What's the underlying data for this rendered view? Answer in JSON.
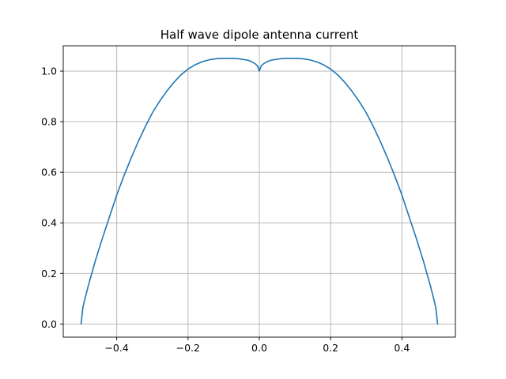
{
  "chart_data": {
    "type": "line",
    "title": "Half wave dipole antenna current",
    "xlabel": "",
    "ylabel": "",
    "xlim": [
      -0.55,
      0.55
    ],
    "ylim": [
      -0.052,
      1.1
    ],
    "xticks": [
      -0.4,
      -0.2,
      0.0,
      0.2,
      0.4
    ],
    "xtick_labels": [
      "−0.4",
      "−0.2",
      "0.0",
      "0.2",
      "0.4"
    ],
    "yticks": [
      0.0,
      0.2,
      0.4,
      0.6,
      0.8,
      1.0
    ],
    "ytick_labels": [
      "0.0",
      "0.2",
      "0.4",
      "0.6",
      "0.8",
      "1.0"
    ],
    "grid": true,
    "legend": "none",
    "colors": {
      "series": "#1f77b4",
      "grid": "#b0b0b0",
      "axes": "#000000"
    },
    "series": [
      {
        "x": [
          -0.5,
          -0.495,
          -0.49,
          -0.48,
          -0.46,
          -0.44,
          -0.42,
          -0.4,
          -0.38,
          -0.36,
          -0.34,
          -0.32,
          -0.3,
          -0.28,
          -0.26,
          -0.24,
          -0.22,
          -0.2,
          -0.18,
          -0.16,
          -0.14,
          -0.12,
          -0.1,
          -0.08,
          -0.06,
          -0.05,
          -0.04,
          -0.03,
          -0.02,
          -0.01,
          -0.005,
          0.0,
          0.005,
          0.01,
          0.02,
          0.03,
          0.04,
          0.05,
          0.06,
          0.08,
          0.1,
          0.12,
          0.14,
          0.16,
          0.18,
          0.2,
          0.22,
          0.24,
          0.26,
          0.28,
          0.3,
          0.32,
          0.34,
          0.36,
          0.38,
          0.4,
          0.42,
          0.44,
          0.46,
          0.48,
          0.49,
          0.495,
          0.5
        ],
        "y": [
          0.0,
          0.065,
          0.095,
          0.15,
          0.25,
          0.34,
          0.425,
          0.51,
          0.585,
          0.655,
          0.72,
          0.78,
          0.835,
          0.88,
          0.92,
          0.955,
          0.985,
          1.008,
          1.025,
          1.037,
          1.045,
          1.049,
          1.05,
          1.05,
          1.049,
          1.047,
          1.045,
          1.042,
          1.036,
          1.027,
          1.02,
          1.0,
          1.02,
          1.027,
          1.036,
          1.042,
          1.045,
          1.047,
          1.049,
          1.05,
          1.05,
          1.049,
          1.045,
          1.037,
          1.025,
          1.008,
          0.985,
          0.955,
          0.92,
          0.88,
          0.835,
          0.78,
          0.72,
          0.655,
          0.585,
          0.51,
          0.425,
          0.34,
          0.25,
          0.15,
          0.095,
          0.065,
          0.0
        ]
      }
    ]
  }
}
